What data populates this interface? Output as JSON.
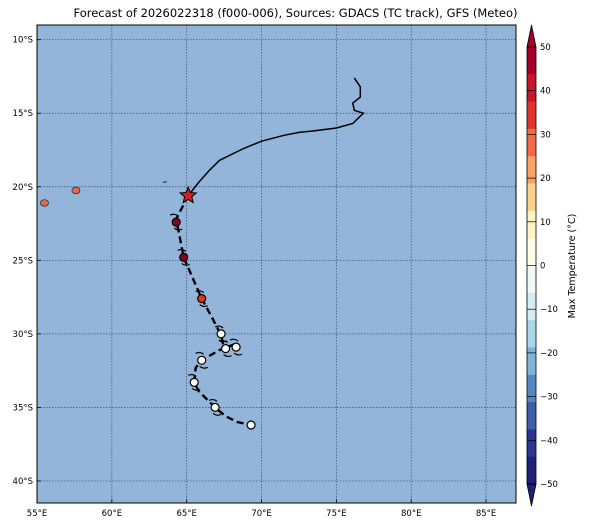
{
  "title": "Forecast of 2026022318 (f000-006), Sources: GDACS (TC track), GFS (Meteo)",
  "map": {
    "lon_range": [
      55,
      87
    ],
    "lat_range": [
      -41.5,
      -9
    ],
    "ocean_color": "#93b5d9",
    "grid_color": "#3a4f6e",
    "lon_ticks": [
      55,
      60,
      65,
      70,
      75,
      80,
      85
    ],
    "lon_tick_labels": [
      "55°E",
      "60°E",
      "65°E",
      "70°E",
      "75°E",
      "80°E",
      "85°E"
    ],
    "lat_ticks": [
      -10,
      -15,
      -20,
      -25,
      -30,
      -35,
      -40
    ],
    "lat_tick_labels": [
      "10°S",
      "15°S",
      "20°S",
      "25°S",
      "30°S",
      "35°S",
      "40°S"
    ]
  },
  "past_track": [
    [
      76.2,
      -12.6
    ],
    [
      76.6,
      -13.2
    ],
    [
      76.6,
      -13.9
    ],
    [
      76.1,
      -14.3
    ],
    [
      76.2,
      -14.8
    ],
    [
      76.8,
      -15.0
    ],
    [
      76.1,
      -15.7
    ],
    [
      75.0,
      -16.0
    ],
    [
      73.5,
      -16.2
    ],
    [
      72.5,
      -16.3
    ],
    [
      71.5,
      -16.5
    ],
    [
      70.0,
      -16.9
    ],
    [
      68.8,
      -17.4
    ],
    [
      67.2,
      -18.2
    ],
    [
      66.5,
      -18.9
    ],
    [
      65.8,
      -19.7
    ],
    [
      65.1,
      -20.6
    ]
  ],
  "forecast_track": [
    [
      65.1,
      -20.6
    ],
    [
      64.3,
      -22.2
    ],
    [
      64.8,
      -24.8
    ],
    [
      66.0,
      -27.6
    ],
    [
      66.7,
      -28.9
    ],
    [
      67.3,
      -30.1
    ],
    [
      67.5,
      -31.0
    ],
    [
      68.2,
      -30.7
    ],
    [
      67.2,
      -31.1
    ],
    [
      66.0,
      -31.8
    ],
    [
      65.6,
      -32.3
    ],
    [
      65.5,
      -33.3
    ],
    [
      65.8,
      -33.9
    ],
    [
      66.5,
      -34.6
    ],
    [
      66.9,
      -35.0
    ],
    [
      67.6,
      -35.6
    ],
    [
      68.4,
      -36.0
    ],
    [
      69.3,
      -36.2
    ]
  ],
  "current_position": [
    65.1,
    -20.6
  ],
  "forecast_points": [
    {
      "lon": 64.3,
      "lat": -22.4,
      "color": "#8b0020"
    },
    {
      "lon": 64.8,
      "lat": -24.8,
      "color": "#8b0020"
    },
    {
      "lon": 66.0,
      "lat": -27.6,
      "color": "#e83024"
    },
    {
      "lon": 67.3,
      "lat": -30.0,
      "color": "#ffffff"
    },
    {
      "lon": 67.6,
      "lat": -31.0,
      "color": "#ffffff"
    },
    {
      "lon": 68.3,
      "lat": -30.9,
      "color": "#ffffff"
    },
    {
      "lon": 66.0,
      "lat": -31.8,
      "color": "#ffffff"
    },
    {
      "lon": 65.5,
      "lat": -33.3,
      "color": "#ffffff"
    },
    {
      "lon": 66.9,
      "lat": -35.0,
      "color": "#ffffff"
    },
    {
      "lon": 69.3,
      "lat": -36.2,
      "color": "#ffffff",
      "no_symbol": true
    }
  ],
  "islands": [
    {
      "name": "reunion",
      "lon": 55.5,
      "lat": -21.1,
      "color": "#e86a4a"
    },
    {
      "name": "mauritius",
      "lon": 57.6,
      "lat": -20.25,
      "color": "#e86a4a"
    }
  ],
  "colorbar": {
    "label": "Max Temperature (°C)",
    "ticks": [
      50,
      40,
      30,
      20,
      10,
      0,
      -10,
      -20,
      -30,
      -40,
      -50
    ],
    "tick_labels": [
      "50",
      "40",
      "30",
      "20",
      "10",
      "0",
      "−10",
      "−20",
      "−30",
      "−40",
      "−50"
    ],
    "colors_top_to_bottom": [
      "#a50026",
      "#c9152e",
      "#e0362f",
      "#f26a46",
      "#fba262",
      "#fdd08b",
      "#fff3c4",
      "#fefee6",
      "#f0f9f7",
      "#d3ecf4",
      "#a9d6e8",
      "#7eb5d6",
      "#5588c0",
      "#3e5ea8",
      "#2c3593",
      "#20207b"
    ]
  }
}
